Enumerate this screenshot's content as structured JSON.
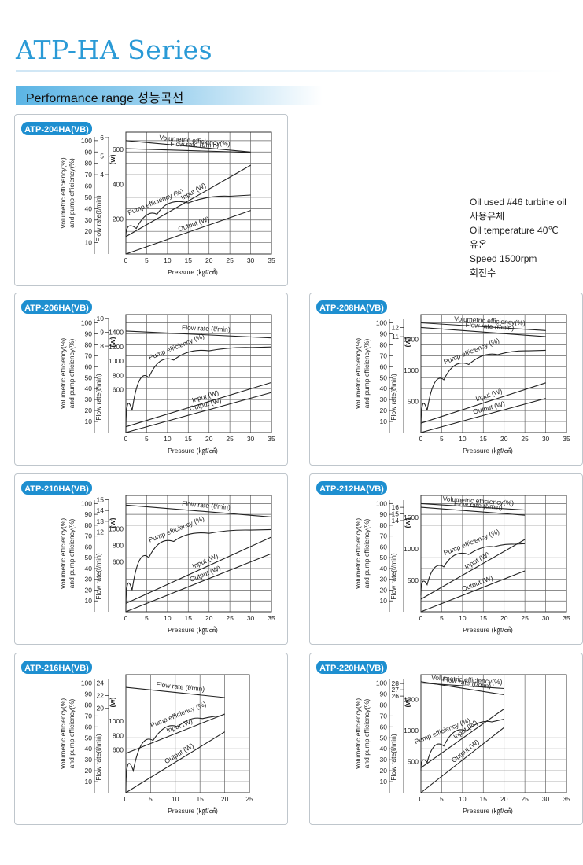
{
  "page": {
    "title": "ATP-HA Series",
    "section_title": "Performance range 성능곡선",
    "conditions": [
      "Oil used #46 turbine oil",
      "사용유체",
      "Oil temperature 40℃",
      "유온",
      "Speed 1500rpm",
      "회전수"
    ]
  },
  "colors": {
    "title": "#2a9ad6",
    "tag": "#1e8fd0",
    "curve": "#222222",
    "grid": "#666666"
  },
  "chart_data": [
    {
      "type": "line",
      "title": "ATP-204HA(VB)",
      "xlabel": "Pressure (㎏f/㎠)",
      "xlim": [
        0,
        35
      ],
      "xticks": [
        "0",
        "5",
        "10",
        "15",
        "20",
        "25",
        "30",
        "35"
      ],
      "ylabel_left": "Volumetric efficiency(%)\nand pump efficiency(%)",
      "yticks_left": [
        "100",
        "90",
        "80",
        "70",
        "60",
        "50",
        "40",
        "30",
        "20",
        "10"
      ],
      "ylabel_flow": "Flow rate(ℓ/min)",
      "yticks_flow": [
        "6",
        "5",
        "4"
      ],
      "ylabel_w": "(w)",
      "yticks_w": [
        "600",
        "400",
        "200"
      ],
      "series": [
        {
          "name": "Volumetric efficiency(%)",
          "x": [
            0,
            30
          ],
          "y": [
            100,
            90
          ]
        },
        {
          "name": "Flow rate (ℓ/min)",
          "x": [
            0,
            30
          ],
          "y": [
            5.4,
            5.2
          ]
        },
        {
          "name": "Pump efficiency (%)",
          "x": [
            0,
            5,
            10,
            20,
            30
          ],
          "y": [
            15,
            30,
            40,
            50,
            52
          ]
        },
        {
          "name": "Input (W)",
          "x": [
            0,
            30
          ],
          "y": [
            100,
            510
          ]
        },
        {
          "name": "Output (W)",
          "x": [
            0,
            30
          ],
          "y": [
            0,
            250
          ]
        }
      ]
    },
    {
      "type": "line",
      "title": "ATP-206HA(VB)",
      "xlabel": "Pressure (㎏f/㎠)",
      "xlim": [
        0,
        35
      ],
      "xticks": [
        "0",
        "5",
        "10",
        "15",
        "20",
        "25",
        "30",
        "35"
      ],
      "ylabel_left": "Volumetric efficiency(%)\nand pump efficiency(%)",
      "yticks_left": [
        "100",
        "90",
        "80",
        "70",
        "60",
        "50",
        "40",
        "30",
        "20",
        "10"
      ],
      "ylabel_flow": "Flow rate(ℓ/min)",
      "yticks_flow": [
        "10",
        "9",
        "8"
      ],
      "ylabel_w": "(w)",
      "yticks_w": [
        "1400",
        "1200",
        "1000",
        "800",
        "600"
      ],
      "series": [
        {
          "name": "Flow rate (ℓ/min)",
          "x": [
            0,
            35
          ],
          "y": [
            9.1,
            8.6
          ]
        },
        {
          "name": "Pump efficiency (%)",
          "x": [
            0,
            3,
            8,
            15,
            25,
            35
          ],
          "y": [
            0,
            40,
            60,
            72,
            77,
            78
          ]
        },
        {
          "name": "Input (W)",
          "x": [
            0,
            35
          ],
          "y": [
            80,
            700
          ]
        },
        {
          "name": "Output (W)",
          "x": [
            0,
            35
          ],
          "y": [
            0,
            560
          ]
        }
      ]
    },
    {
      "type": "line",
      "title": "ATP-208HA(VB)",
      "xlabel": "Pressure (㎏f/㎠)",
      "xlim": [
        0,
        35
      ],
      "xticks": [
        "0",
        "5",
        "10",
        "15",
        "20",
        "25",
        "30",
        "35"
      ],
      "ylabel_left": "Volumetric efficiency(%)\nand pump efficiency(%)",
      "yticks_left": [
        "100",
        "90",
        "80",
        "70",
        "60",
        "50",
        "40",
        "30",
        "20",
        "10"
      ],
      "ylabel_flow": "Flow rate(ℓ/min)",
      "yticks_flow": [
        "12",
        "11"
      ],
      "ylabel_w": "(w)",
      "yticks_w": [
        "1500",
        "1000",
        "500"
      ],
      "series": [
        {
          "name": "Volumetric efficiency(%)",
          "x": [
            0,
            30
          ],
          "y": [
            100,
            93
          ]
        },
        {
          "name": "Flow rate (ℓ/min)",
          "x": [
            0,
            30
          ],
          "y": [
            12,
            11
          ]
        },
        {
          "name": "Pump efficiency (%)",
          "x": [
            0,
            3,
            8,
            15,
            22,
            30
          ],
          "y": [
            0,
            40,
            56,
            68,
            74,
            75
          ]
        },
        {
          "name": "Input (W)",
          "x": [
            0,
            30
          ],
          "y": [
            150,
            800
          ]
        },
        {
          "name": "Output (W)",
          "x": [
            0,
            30
          ],
          "y": [
            0,
            550
          ]
        }
      ]
    },
    {
      "type": "line",
      "title": "ATP-210HA(VB)",
      "xlabel": "Pressure (㎏f/㎠)",
      "xlim": [
        0,
        35
      ],
      "xticks": [
        "0",
        "5",
        "10",
        "15",
        "20",
        "25",
        "30",
        "35"
      ],
      "ylabel_left": "Volumetric efficiency(%)\nand pump efficiency(%)",
      "yticks_left": [
        "100",
        "90",
        "80",
        "70",
        "60",
        "50",
        "40",
        "30",
        "20",
        "10"
      ],
      "ylabel_flow": "Flow rate(ℓ/min)",
      "yticks_flow": [
        "15",
        "14",
        "13",
        "12"
      ],
      "ylabel_w": "(w)",
      "yticks_w": [
        "1000",
        "800",
        "600"
      ],
      "series": [
        {
          "name": "Flow rate (ℓ/min)",
          "x": [
            0,
            35
          ],
          "y": [
            14.5,
            13.4
          ]
        },
        {
          "name": "Pump efficiency (%)",
          "x": [
            0,
            3,
            8,
            15,
            25,
            35
          ],
          "y": [
            0,
            40,
            60,
            70,
            75,
            76
          ]
        },
        {
          "name": "Input (W)",
          "x": [
            0,
            35
          ],
          "y": [
            100,
            900
          ]
        },
        {
          "name": "Output (W)",
          "x": [
            0,
            35
          ],
          "y": [
            0,
            700
          ]
        }
      ]
    },
    {
      "type": "line",
      "title": "ATP-212HA(VB)",
      "xlabel": "Pressure (㎏f/㎠)",
      "xlim": [
        0,
        35
      ],
      "xticks": [
        "0",
        "5",
        "10",
        "15",
        "20",
        "25",
        "30",
        "35"
      ],
      "ylabel_left": "Volumetric efficiency(%)\nand pump efficiency(%)",
      "yticks_left": [
        "100",
        "90",
        "80",
        "70",
        "60",
        "50",
        "40",
        "30",
        "20",
        "10"
      ],
      "ylabel_flow": "Flow rate(ℓ/min)",
      "yticks_flow": [
        "16",
        "15",
        "14"
      ],
      "ylabel_w": "(w)",
      "yticks_w": [
        "1500",
        "1000",
        "500"
      ],
      "series": [
        {
          "name": "Volumetric efficiency(%)",
          "x": [
            0,
            25
          ],
          "y": [
            100,
            94
          ]
        },
        {
          "name": "Flow rate (ℓ/min)",
          "x": [
            0,
            25
          ],
          "y": [
            16,
            14.8
          ]
        },
        {
          "name": "Pump efficiency (%)",
          "x": [
            0,
            3,
            8,
            15,
            20,
            25
          ],
          "y": [
            15,
            35,
            48,
            58,
            62,
            63
          ]
        },
        {
          "name": "Input (W)",
          "x": [
            0,
            25
          ],
          "y": [
            200,
            1150
          ]
        },
        {
          "name": "Output (W)",
          "x": [
            0,
            25
          ],
          "y": [
            0,
            650
          ]
        }
      ]
    },
    {
      "type": "line",
      "title": "ATP-216HA(VB)",
      "xlabel": "Pressure (㎏f/㎠)",
      "xlim": [
        0,
        25
      ],
      "xticks": [
        "0",
        "5",
        "10",
        "15",
        "20",
        "25"
      ],
      "ylabel_left": "Volumetric efficiency(%)\nand pump efficiency(%)",
      "yticks_left": [
        "100",
        "90",
        "80",
        "70",
        "60",
        "50",
        "40",
        "30",
        "20",
        "10"
      ],
      "ylabel_flow": "Flow rate(ℓ/min)",
      "yticks_flow": [
        "24",
        "22",
        "20"
      ],
      "ylabel_w": "(w)",
      "yticks_w": [
        "1000",
        "800",
        "600"
      ],
      "series": [
        {
          "name": "Flow rate (ℓ/min)",
          "x": [
            0,
            20
          ],
          "y": [
            23.3,
            21.7
          ]
        },
        {
          "name": "Pump efficiency (%)",
          "x": [
            0,
            3,
            8,
            13,
            18,
            20
          ],
          "y": [
            0,
            40,
            55,
            65,
            70,
            70
          ]
        },
        {
          "name": "Input (W)",
          "x": [
            0,
            20
          ],
          "y": [
            550,
            1100
          ]
        },
        {
          "name": "Output (W)",
          "x": [
            0,
            20
          ],
          "y": [
            0,
            850
          ]
        }
      ]
    },
    {
      "type": "line",
      "title": "ATP-220HA(VB)",
      "xlabel": "Pressure (㎏f/㎠)",
      "xlim": [
        0,
        35
      ],
      "xticks": [
        "0",
        "5",
        "10",
        "15",
        "20",
        "25",
        "30",
        "35"
      ],
      "ylabel_left": "Volumetric efficiency(%)\nand pump efficiency(%)",
      "yticks_left": [
        "100",
        "90",
        "80",
        "70",
        "60",
        "50",
        "40",
        "30",
        "20",
        "10"
      ],
      "ylabel_flow": "Flow rate(ℓ/min)",
      "yticks_flow": [
        "28",
        "27",
        "26"
      ],
      "ylabel_w": "(w)",
      "yticks_w": [
        "1500",
        "1000",
        "500"
      ],
      "series": [
        {
          "name": "Volumetric efficiency(%)",
          "x": [
            0,
            20
          ],
          "y": [
            100,
            95
          ]
        },
        {
          "name": "Flow rate (ℓ/min)",
          "x": [
            0,
            20
          ],
          "y": [
            28.3,
            26.2
          ]
        },
        {
          "name": "Pump efficiency (%)",
          "x": [
            0,
            3,
            8,
            14,
            20
          ],
          "y": [
            20,
            35,
            50,
            62,
            67
          ]
        },
        {
          "name": "Input (W)",
          "x": [
            0,
            20
          ],
          "y": [
            400,
            1350
          ]
        },
        {
          "name": "Output (W)",
          "x": [
            0,
            20
          ],
          "y": [
            0,
            1050
          ]
        }
      ]
    }
  ]
}
